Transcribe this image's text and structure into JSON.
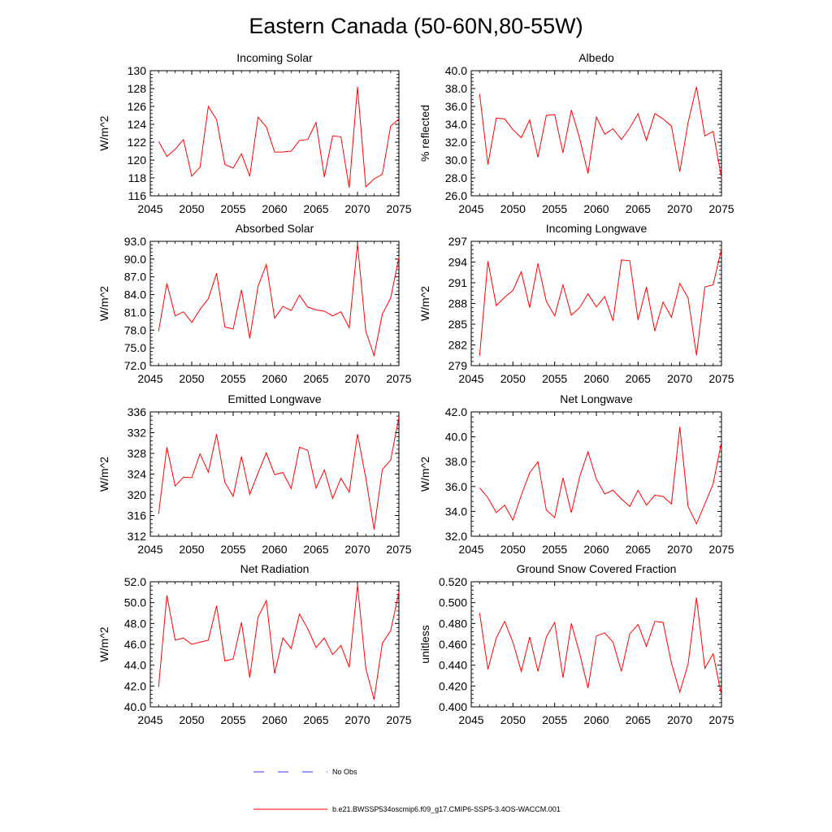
{
  "page_title": "Eastern Canada (50-60N,80-55W)",
  "legend": {
    "obs_label": "No Obs",
    "model_label": "b.e21.BWSSP534oscmip6.f09_g17.CMIP6-SSP5-3.4OS-WACCM.001",
    "model_color": "#ff0000",
    "obs_color": "#3333ff"
  },
  "years": [
    2046,
    2047,
    2048,
    2049,
    2050,
    2051,
    2052,
    2053,
    2054,
    2055,
    2056,
    2057,
    2058,
    2059,
    2060,
    2061,
    2062,
    2063,
    2064,
    2065,
    2066,
    2067,
    2068,
    2069,
    2070,
    2071,
    2072,
    2073,
    2074,
    2075
  ],
  "chart_data": [
    {
      "type": "line",
      "title": "Incoming Solar",
      "ylabel": "W/m^2",
      "xlim": [
        2045,
        2075
      ],
      "ylim": [
        116,
        130
      ],
      "xticks": [
        2045,
        2050,
        2055,
        2060,
        2065,
        2070,
        2075
      ],
      "xtick_labels": [
        "2045",
        "2050",
        "2055",
        "2060",
        "2065",
        "2070",
        "2075"
      ],
      "yticks": [
        116,
        118,
        120,
        122,
        124,
        126,
        128,
        130
      ],
      "ytick_labels": [
        "116",
        "118",
        "120",
        "122",
        "124",
        "126",
        "128",
        "130"
      ],
      "series": [
        {
          "values": [
            122.1,
            120.4,
            121.2,
            122.3,
            118.2,
            119.2,
            126.0,
            124.5,
            119.5,
            119.1,
            120.7,
            118.2,
            124.8,
            123.7,
            120.9,
            120.9,
            121.0,
            122.2,
            122.3,
            124.2,
            118.1,
            122.7,
            122.6,
            116.9,
            128.2,
            117.0,
            117.9,
            118.4,
            123.8,
            124.6
          ]
        }
      ]
    },
    {
      "type": "line",
      "title": "Albedo",
      "ylabel": "% reflected",
      "xlim": [
        2045,
        2075
      ],
      "ylim": [
        26,
        40
      ],
      "xticks": [
        2045,
        2050,
        2055,
        2060,
        2065,
        2070,
        2075
      ],
      "xtick_labels": [
        "2045",
        "2050",
        "2055",
        "2060",
        "2065",
        "2070",
        "2075"
      ],
      "yticks": [
        26,
        28,
        30,
        32,
        34,
        36,
        38,
        40
      ],
      "ytick_labels": [
        "26.0",
        "28.0",
        "30.0",
        "32.0",
        "34.0",
        "36.0",
        "38.0",
        "40.0"
      ],
      "series": [
        {
          "values": [
            37.4,
            29.5,
            34.7,
            34.6,
            33.4,
            32.5,
            34.5,
            30.3,
            35.0,
            35.1,
            30.8,
            35.6,
            32.4,
            28.5,
            34.8,
            32.9,
            33.5,
            32.3,
            33.6,
            35.2,
            32.2,
            35.2,
            34.6,
            33.8,
            28.7,
            34.2,
            38.2,
            32.7,
            33.2,
            28.0
          ]
        }
      ]
    },
    {
      "type": "line",
      "title": "Absorbed Solar",
      "ylabel": "W/m^2",
      "xlim": [
        2045,
        2075
      ],
      "ylim": [
        72,
        93
      ],
      "xticks": [
        2045,
        2050,
        2055,
        2060,
        2065,
        2070,
        2075
      ],
      "xtick_labels": [
        "2045",
        "2050",
        "2055",
        "2060",
        "2065",
        "2070",
        "2075"
      ],
      "yticks": [
        72,
        75,
        78,
        81,
        84,
        87,
        90,
        93
      ],
      "ytick_labels": [
        "72.0",
        "75.0",
        "78.0",
        "81.0",
        "84.0",
        "87.0",
        "90.0",
        "93.0"
      ],
      "series": [
        {
          "values": [
            77.8,
            85.9,
            80.4,
            81.1,
            79.3,
            81.5,
            83.3,
            87.6,
            78.5,
            78.2,
            84.8,
            76.6,
            85.4,
            89.1,
            80.0,
            82.0,
            81.3,
            83.9,
            81.9,
            81.4,
            81.2,
            80.4,
            81.1,
            78.4,
            92.6,
            77.8,
            73.7,
            80.7,
            83.4,
            90.3
          ]
        }
      ]
    },
    {
      "type": "line",
      "title": "Incoming Longwave",
      "ylabel": "W/m^2",
      "xlim": [
        2045,
        2075
      ],
      "ylim": [
        279,
        297
      ],
      "xticks": [
        2045,
        2050,
        2055,
        2060,
        2065,
        2070,
        2075
      ],
      "xtick_labels": [
        "2045",
        "2050",
        "2055",
        "2060",
        "2065",
        "2070",
        "2075"
      ],
      "yticks": [
        279,
        282,
        285,
        288,
        291,
        294,
        297
      ],
      "ytick_labels": [
        "279",
        "282",
        "285",
        "288",
        "291",
        "294",
        "297"
      ],
      "series": [
        {
          "values": [
            280.4,
            294.1,
            287.7,
            288.9,
            289.9,
            292.6,
            287.4,
            293.8,
            288.3,
            286.2,
            290.7,
            286.3,
            287.4,
            289.4,
            287.5,
            289.0,
            285.5,
            294.3,
            294.2,
            285.6,
            290.4,
            284.0,
            288.2,
            286.0,
            290.9,
            288.8,
            280.5,
            290.4,
            290.7,
            295.9
          ]
        }
      ]
    },
    {
      "type": "line",
      "title": "Emitted Longwave",
      "ylabel": "W/m^2",
      "xlim": [
        2045,
        2075
      ],
      "ylim": [
        312,
        336
      ],
      "xticks": [
        2045,
        2050,
        2055,
        2060,
        2065,
        2070,
        2075
      ],
      "xtick_labels": [
        "2045",
        "2050",
        "2055",
        "2060",
        "2065",
        "2070",
        "2075"
      ],
      "yticks": [
        312,
        316,
        320,
        324,
        328,
        332,
        336
      ],
      "ytick_labels": [
        "312",
        "316",
        "320",
        "324",
        "328",
        "332",
        "336"
      ],
      "series": [
        {
          "values": [
            316.3,
            329.2,
            321.7,
            323.4,
            323.3,
            327.9,
            324.4,
            331.7,
            322.4,
            319.7,
            327.4,
            320.1,
            324.2,
            328.1,
            323.9,
            324.3,
            321.2,
            329.2,
            328.6,
            321.3,
            324.8,
            319.3,
            323.2,
            320.5,
            331.7,
            323.3,
            313.3,
            324.9,
            326.7,
            335.0
          ]
        }
      ]
    },
    {
      "type": "line",
      "title": "Net Longwave",
      "ylabel": "W/m^2",
      "xlim": [
        2045,
        2075
      ],
      "ylim": [
        32,
        42
      ],
      "xticks": [
        2045,
        2050,
        2055,
        2060,
        2065,
        2070,
        2075
      ],
      "xtick_labels": [
        "2045",
        "2050",
        "2055",
        "2060",
        "2065",
        "2070",
        "2075"
      ],
      "yticks": [
        32,
        34,
        36,
        38,
        40,
        42
      ],
      "ytick_labels": [
        "32.0",
        "34.0",
        "36.0",
        "38.0",
        "40.0",
        "42.0"
      ],
      "series": [
        {
          "values": [
            35.9,
            35.1,
            33.9,
            34.5,
            33.3,
            35.3,
            37.1,
            38.0,
            34.1,
            33.5,
            36.7,
            33.9,
            36.8,
            38.8,
            36.6,
            35.4,
            35.7,
            35.0,
            34.4,
            35.7,
            34.5,
            35.3,
            35.2,
            34.6,
            40.8,
            34.4,
            33.0,
            34.6,
            36.2,
            39.6
          ]
        }
      ]
    },
    {
      "type": "line",
      "title": "Net Radiation",
      "ylabel": "W/m^2",
      "xlim": [
        2045,
        2075
      ],
      "ylim": [
        40,
        52
      ],
      "xticks": [
        2045,
        2050,
        2055,
        2060,
        2065,
        2070,
        2075
      ],
      "xtick_labels": [
        "2045",
        "2050",
        "2055",
        "2060",
        "2065",
        "2070",
        "2075"
      ],
      "yticks": [
        40,
        42,
        44,
        46,
        48,
        50,
        52
      ],
      "ytick_labels": [
        "40.0",
        "42.0",
        "44.0",
        "46.0",
        "48.0",
        "50.0",
        "52.0"
      ],
      "series": [
        {
          "values": [
            41.9,
            50.7,
            46.4,
            46.6,
            46.0,
            46.2,
            46.4,
            49.7,
            44.4,
            44.6,
            48.1,
            42.8,
            48.6,
            50.2,
            43.2,
            46.6,
            45.6,
            48.9,
            47.5,
            45.7,
            46.6,
            45.0,
            45.9,
            43.8,
            51.7,
            43.7,
            40.7,
            46.1,
            47.3,
            51.0
          ]
        }
      ]
    },
    {
      "type": "line",
      "title": "Ground Snow Covered Fraction",
      "ylabel": "unitless",
      "xlim": [
        2045,
        2075
      ],
      "ylim": [
        0.4,
        0.52
      ],
      "xticks": [
        2045,
        2050,
        2055,
        2060,
        2065,
        2070,
        2075
      ],
      "xtick_labels": [
        "2045",
        "2050",
        "2055",
        "2060",
        "2065",
        "2070",
        "2075"
      ],
      "yticks": [
        0.4,
        0.42,
        0.44,
        0.46,
        0.48,
        0.5,
        0.52
      ],
      "ytick_labels": [
        "0.400",
        "0.420",
        "0.440",
        "0.460",
        "0.480",
        "0.500",
        "0.520"
      ],
      "series": [
        {
          "values": [
            0.49,
            0.436,
            0.466,
            0.482,
            0.462,
            0.434,
            0.467,
            0.434,
            0.467,
            0.481,
            0.428,
            0.48,
            0.451,
            0.418,
            0.468,
            0.471,
            0.462,
            0.434,
            0.47,
            0.479,
            0.458,
            0.482,
            0.481,
            0.442,
            0.414,
            0.441,
            0.505,
            0.437,
            0.451,
            0.411
          ]
        }
      ]
    }
  ]
}
